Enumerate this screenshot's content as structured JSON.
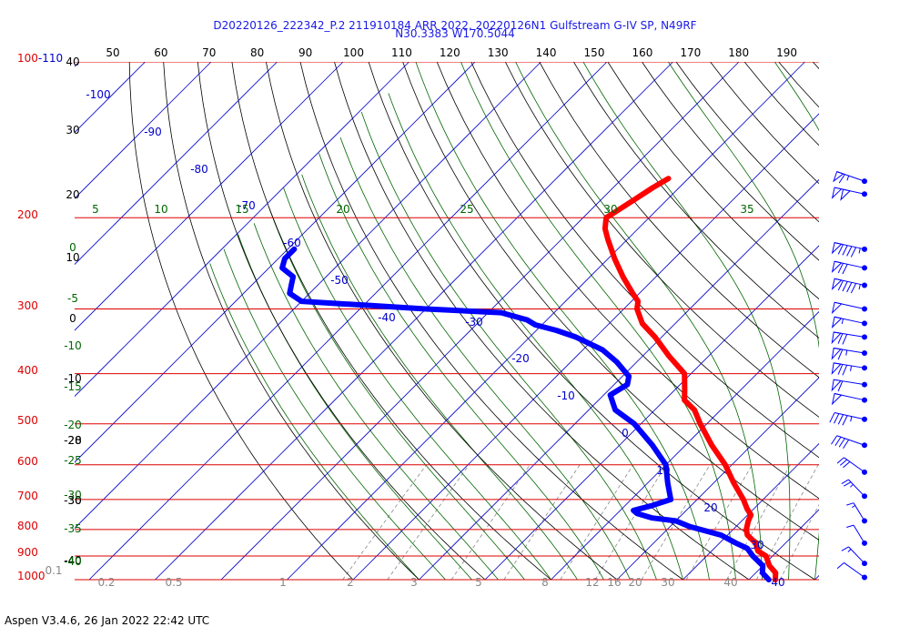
{
  "header": {
    "line1": "D20220126_222342_P.2 211910184 ARR 2022, 20220126N1 Gulfstream G-IV SP, N49RF",
    "line2": "N30.3383 W170.5044"
  },
  "footer": "Aspen V3.4.6, 26 Jan 2022  22:42 UTC",
  "colors": {
    "isobar": "#dd0000",
    "isotherm": "#0000cc",
    "dry_adiabat": "#000000",
    "moist_adiabat": "#006600",
    "mixing_ratio": "#888888",
    "temperature": "#ff0000",
    "dewpoint": "#0000ff",
    "top_label": "#000000"
  },
  "chart_data": {
    "type": "skew-t",
    "pressure_labels": [
      "100-110",
      "200",
      "300",
      "400",
      "500",
      "600",
      "700",
      "800",
      "900",
      "1000"
    ],
    "pressure_levels": [
      100,
      200,
      300,
      400,
      500,
      600,
      700,
      800,
      900,
      1000
    ],
    "top_scale": [
      "50",
      "60",
      "70",
      "80",
      "90",
      "100",
      "110",
      "120",
      "130",
      "140",
      "150",
      "160",
      "170",
      "180",
      "190"
    ],
    "potential_temperature_labels": [
      "40",
      "30",
      "20",
      "10",
      "0",
      "-10",
      "-20",
      "-30",
      "-40"
    ],
    "isotherm_labels": [
      "-100",
      "-90",
      "-80",
      "-70",
      "-60",
      "-50",
      "-40",
      "-30",
      "-20",
      "-10",
      "0",
      "10",
      "20",
      "30",
      "40"
    ],
    "theta_e_labels": [
      "5",
      "10",
      "15",
      "20",
      "25",
      "30",
      "35"
    ],
    "theta_e_side_labels": [
      "0",
      "-5",
      "-10",
      "-15",
      "-20",
      "-25",
      "-30",
      "-35",
      "-40"
    ],
    "side_extra_labels": [
      "-28",
      "-30"
    ],
    "mixing_ratio_labels": [
      "0.1",
      "0.2",
      "0.5",
      "1",
      "2",
      "3",
      "5",
      "8",
      "12",
      "16",
      "20",
      "30",
      "40"
    ],
    "temperature_profile": [
      {
        "p": 1000,
        "t": 24
      },
      {
        "p": 970,
        "t": 23
      },
      {
        "p": 940,
        "t": 21
      },
      {
        "p": 900,
        "t": 19
      },
      {
        "p": 880,
        "t": 17
      },
      {
        "p": 850,
        "t": 15.5
      },
      {
        "p": 820,
        "t": 13
      },
      {
        "p": 800,
        "t": 12
      },
      {
        "p": 770,
        "t": 11
      },
      {
        "p": 750,
        "t": 10.5
      },
      {
        "p": 730,
        "t": 9
      },
      {
        "p": 700,
        "t": 7
      },
      {
        "p": 650,
        "t": 3
      },
      {
        "p": 600,
        "t": -1
      },
      {
        "p": 550,
        "t": -6
      },
      {
        "p": 500,
        "t": -11
      },
      {
        "p": 470,
        "t": -14
      },
      {
        "p": 450,
        "t": -17
      },
      {
        "p": 430,
        "t": -18.5
      },
      {
        "p": 400,
        "t": -21
      },
      {
        "p": 370,
        "t": -26
      },
      {
        "p": 340,
        "t": -31
      },
      {
        "p": 320,
        "t": -35
      },
      {
        "p": 300,
        "t": -38
      },
      {
        "p": 290,
        "t": -39
      },
      {
        "p": 280,
        "t": -41
      },
      {
        "p": 260,
        "t": -45
      },
      {
        "p": 240,
        "t": -49
      },
      {
        "p": 220,
        "t": -53
      },
      {
        "p": 210,
        "t": -55
      },
      {
        "p": 200,
        "t": -56.5
      },
      {
        "p": 195,
        "t": -56
      },
      {
        "p": 185,
        "t": -55
      },
      {
        "p": 175,
        "t": -54
      },
      {
        "p": 168,
        "t": -53
      }
    ],
    "dewpoint_profile": [
      {
        "p": 1000,
        "t": 23
      },
      {
        "p": 970,
        "t": 21
      },
      {
        "p": 940,
        "t": 20
      },
      {
        "p": 900,
        "t": 17
      },
      {
        "p": 870,
        "t": 15
      },
      {
        "p": 850,
        "t": 12.5
      },
      {
        "p": 820,
        "t": 9
      },
      {
        "p": 790,
        "t": 3
      },
      {
        "p": 770,
        "t": 0
      },
      {
        "p": 760,
        "t": -4
      },
      {
        "p": 745,
        "t": -7
      },
      {
        "p": 735,
        "t": -8
      },
      {
        "p": 720,
        "t": -6
      },
      {
        "p": 700,
        "t": -4
      },
      {
        "p": 650,
        "t": -7
      },
      {
        "p": 600,
        "t": -10
      },
      {
        "p": 550,
        "t": -15
      },
      {
        "p": 500,
        "t": -21
      },
      {
        "p": 470,
        "t": -26
      },
      {
        "p": 440,
        "t": -29
      },
      {
        "p": 420,
        "t": -28
      },
      {
        "p": 405,
        "t": -29
      },
      {
        "p": 380,
        "t": -33
      },
      {
        "p": 360,
        "t": -37
      },
      {
        "p": 340,
        "t": -43
      },
      {
        "p": 330,
        "t": -47
      },
      {
        "p": 322,
        "t": -51
      },
      {
        "p": 315,
        "t": -53
      },
      {
        "p": 305,
        "t": -58
      },
      {
        "p": 300,
        "t": -70
      },
      {
        "p": 295,
        "t": -80
      },
      {
        "p": 290,
        "t": -90
      },
      {
        "p": 280,
        "t": -93
      },
      {
        "p": 270,
        "t": -94
      },
      {
        "p": 260,
        "t": -95
      },
      {
        "p": 250,
        "t": -98
      },
      {
        "p": 240,
        "t": -99
      },
      {
        "p": 230,
        "t": -99
      }
    ],
    "wind_barbs": [
      {
        "p": 170,
        "speed": 65,
        "dir": 300
      },
      {
        "p": 180,
        "speed": 100,
        "dir": 290
      },
      {
        "p": 230,
        "speed": 95,
        "dir": 290
      },
      {
        "p": 250,
        "speed": 70,
        "dir": 290
      },
      {
        "p": 270,
        "speed": 95,
        "dir": 290
      },
      {
        "p": 300,
        "speed": 50,
        "dir": 290
      },
      {
        "p": 320,
        "speed": 55,
        "dir": 290
      },
      {
        "p": 340,
        "speed": 70,
        "dir": 285
      },
      {
        "p": 365,
        "speed": 65,
        "dir": 285
      },
      {
        "p": 390,
        "speed": 75,
        "dir": 285
      },
      {
        "p": 420,
        "speed": 60,
        "dir": 285
      },
      {
        "p": 450,
        "speed": 50,
        "dir": 290
      },
      {
        "p": 490,
        "speed": 45,
        "dir": 290
      },
      {
        "p": 550,
        "speed": 40,
        "dir": 300
      },
      {
        "p": 620,
        "speed": 30,
        "dir": 320
      },
      {
        "p": 690,
        "speed": 25,
        "dir": 330
      },
      {
        "p": 770,
        "speed": 15,
        "dir": 340
      },
      {
        "p": 850,
        "speed": 10,
        "dir": 340
      },
      {
        "p": 930,
        "speed": 15,
        "dir": 330
      },
      {
        "p": 990,
        "speed": 10,
        "dir": 320
      }
    ]
  }
}
